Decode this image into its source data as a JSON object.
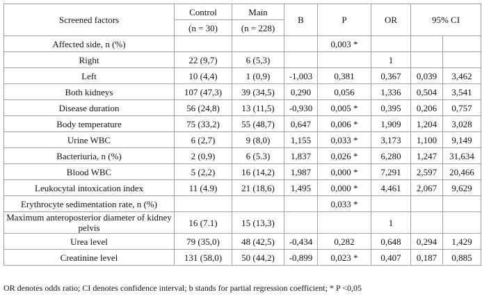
{
  "table": {
    "header": {
      "factor": "Screened factors",
      "control": "Control",
      "control_n": "(n = 30)",
      "main": "Main",
      "main_n": "(n = 228)",
      "b": "B",
      "p": "P",
      "or": "OR",
      "ci": "95% CI"
    },
    "rows": [
      [
        "Affected side, n (%)",
        null,
        null,
        null,
        "0,003 *",
        null,
        null,
        null
      ],
      [
        "Right",
        "22 (9,7)",
        "6 (5,3)",
        null,
        null,
        "1",
        null,
        null
      ],
      [
        "Left",
        "10 (4,4)",
        "1 (0,9)",
        "-1,003",
        "0,381",
        "0,367",
        "0,039",
        "3,462"
      ],
      [
        "Both kidneys",
        "107 (47,3)",
        "39 (34,5)",
        "0,290",
        "0,056",
        "1,336",
        "0,504",
        "3,541"
      ],
      [
        "Disease duration",
        "56 (24,8)",
        "13 (11,5)",
        "-0,930",
        "0,005 *",
        "0,395",
        "0,206",
        "0,757"
      ],
      [
        "Body temperature",
        "75 (33,2)",
        "55 (48,7)",
        "0,647",
        "0,006 *",
        "1,909",
        "1,204",
        "3,028"
      ],
      [
        "Urine WBC",
        "6 (2,7)",
        "9 (8,0)",
        "1,155",
        "0,033 *",
        "3,173",
        "1,100",
        "9,149"
      ],
      [
        "Bacteriuria, n (%)",
        "2 (0,9)",
        "6 (5.3)",
        "1,837",
        "0,026 *",
        "6,280",
        "1,247",
        "31,634"
      ],
      [
        "Blood WBC",
        "5 (2,2)",
        "16 (14,2)",
        "1,987",
        "0,000 *",
        "7,291",
        "2,597",
        "20,466"
      ],
      [
        "Leukocytal intoxication index",
        "11 (4.9)",
        "21 (18,6)",
        "1,495",
        "0,000 *",
        "4,461",
        "2,067",
        "9,629"
      ],
      [
        "Erythrocyte sedimentation rate, n (%)",
        null,
        null,
        null,
        "0,033 *",
        null,
        null,
        null
      ],
      [
        "Maximum anteroposterior diameter of kidney pelvis",
        "16 (7.1)",
        "15 (13,3)",
        null,
        null,
        "1",
        null,
        null
      ],
      [
        "Urea level",
        "79 (35,0)",
        "48 (42,5)",
        "-0,434",
        "0,282",
        "0,648",
        "0,294",
        "1,429"
      ],
      [
        "Creatinine level",
        "131 (58,0)",
        "50 (44,2)",
        "-0,899",
        "0,023 *",
        "0,407",
        "0,187",
        "0,885"
      ]
    ]
  },
  "footnote": "OR denotes odds ratio; CI denotes confidence interval; b stands for partial regression coefficient; * P <0,05"
}
